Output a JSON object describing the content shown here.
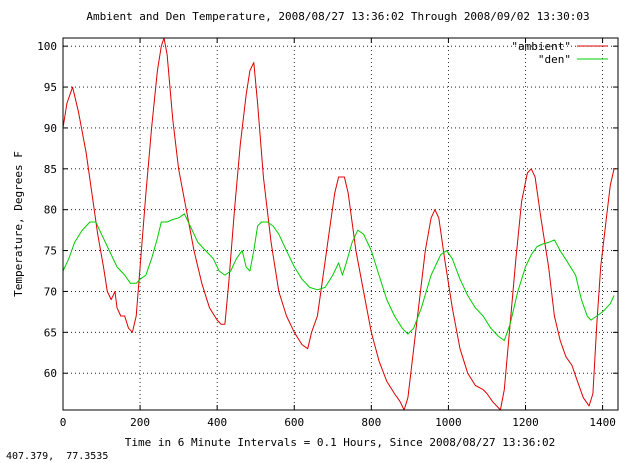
{
  "status_readout": "407.379,  77.3535",
  "chart_data": {
    "type": "line",
    "title": "Ambient and Den Temperature, 2008/08/27 13:36:02 Through 2008/09/02 13:30:03",
    "xlabel": "Time in 6 Minute Intervals = 0.1 Hours, Since 2008/08/27 13:36:02",
    "ylabel": "Temperature, Degrees F",
    "xlim": [
      0,
      1440
    ],
    "ylim": [
      55.5,
      101
    ],
    "x_ticks": [
      0,
      200,
      400,
      600,
      800,
      1000,
      1200,
      1400
    ],
    "y_ticks": [
      60,
      65,
      70,
      75,
      80,
      85,
      90,
      95,
      100
    ],
    "grid": true,
    "legend_position": "top-right",
    "series": [
      {
        "name": "\"ambient\"",
        "color": "#dd0000",
        "points": [
          [
            0,
            90
          ],
          [
            10,
            93
          ],
          [
            25,
            95
          ],
          [
            40,
            92
          ],
          [
            60,
            87
          ],
          [
            75,
            82
          ],
          [
            90,
            77
          ],
          [
            105,
            73
          ],
          [
            115,
            70
          ],
          [
            125,
            69
          ],
          [
            135,
            70
          ],
          [
            140,
            68
          ],
          [
            150,
            67
          ],
          [
            160,
            67
          ],
          [
            170,
            65.5
          ],
          [
            180,
            65
          ],
          [
            190,
            67
          ],
          [
            200,
            73
          ],
          [
            215,
            82
          ],
          [
            230,
            90
          ],
          [
            245,
            97
          ],
          [
            255,
            100
          ],
          [
            262,
            101
          ],
          [
            270,
            99
          ],
          [
            285,
            91
          ],
          [
            300,
            85
          ],
          [
            320,
            80
          ],
          [
            340,
            75
          ],
          [
            360,
            71
          ],
          [
            380,
            68
          ],
          [
            400,
            66.5
          ],
          [
            410,
            66
          ],
          [
            420,
            66
          ],
          [
            430,
            71
          ],
          [
            445,
            80
          ],
          [
            460,
            88
          ],
          [
            475,
            94
          ],
          [
            485,
            97
          ],
          [
            495,
            98
          ],
          [
            505,
            93
          ],
          [
            520,
            84
          ],
          [
            540,
            76
          ],
          [
            560,
            70
          ],
          [
            580,
            67
          ],
          [
            600,
            65
          ],
          [
            620,
            63.5
          ],
          [
            635,
            63
          ],
          [
            645,
            65
          ],
          [
            660,
            67
          ],
          [
            675,
            72
          ],
          [
            690,
            77
          ],
          [
            705,
            82
          ],
          [
            715,
            84
          ],
          [
            730,
            84
          ],
          [
            740,
            82
          ],
          [
            760,
            75
          ],
          [
            780,
            70
          ],
          [
            800,
            65
          ],
          [
            820,
            61.5
          ],
          [
            840,
            59
          ],
          [
            860,
            57.5
          ],
          [
            875,
            56.5
          ],
          [
            885,
            55.5
          ],
          [
            895,
            57
          ],
          [
            910,
            63
          ],
          [
            925,
            69
          ],
          [
            940,
            75
          ],
          [
            955,
            79
          ],
          [
            965,
            80
          ],
          [
            975,
            79
          ],
          [
            990,
            74
          ],
          [
            1010,
            68
          ],
          [
            1030,
            63
          ],
          [
            1050,
            60
          ],
          [
            1070,
            58.5
          ],
          [
            1090,
            58
          ],
          [
            1100,
            57.5
          ],
          [
            1115,
            56.5
          ],
          [
            1125,
            56
          ],
          [
            1135,
            55.5
          ],
          [
            1145,
            58
          ],
          [
            1160,
            66
          ],
          [
            1175,
            74
          ],
          [
            1190,
            81
          ],
          [
            1205,
            84.5
          ],
          [
            1215,
            85
          ],
          [
            1225,
            84
          ],
          [
            1240,
            79
          ],
          [
            1260,
            73
          ],
          [
            1275,
            67
          ],
          [
            1290,
            64
          ],
          [
            1305,
            62
          ],
          [
            1320,
            61
          ],
          [
            1335,
            59
          ],
          [
            1350,
            57
          ],
          [
            1365,
            56
          ],
          [
            1375,
            57.5
          ],
          [
            1385,
            66
          ],
          [
            1395,
            73
          ],
          [
            1410,
            79
          ],
          [
            1420,
            83
          ],
          [
            1430,
            85
          ]
        ]
      },
      {
        "name": "\"den\"",
        "color": "#00cc00",
        "points": [
          [
            0,
            72.5
          ],
          [
            15,
            74
          ],
          [
            30,
            76
          ],
          [
            50,
            77.5
          ],
          [
            70,
            78.5
          ],
          [
            85,
            78.5
          ],
          [
            100,
            77
          ],
          [
            120,
            75
          ],
          [
            140,
            73
          ],
          [
            160,
            72
          ],
          [
            175,
            71
          ],
          [
            190,
            71
          ],
          [
            200,
            71.5
          ],
          [
            215,
            72
          ],
          [
            230,
            74
          ],
          [
            245,
            76.5
          ],
          [
            255,
            78.5
          ],
          [
            270,
            78.5
          ],
          [
            285,
            78.8
          ],
          [
            300,
            79
          ],
          [
            315,
            79.5
          ],
          [
            330,
            78
          ],
          [
            350,
            76
          ],
          [
            370,
            75
          ],
          [
            390,
            74
          ],
          [
            405,
            72.5
          ],
          [
            420,
            72
          ],
          [
            435,
            72.5
          ],
          [
            450,
            74
          ],
          [
            465,
            75
          ],
          [
            475,
            73
          ],
          [
            485,
            72.5
          ],
          [
            495,
            75
          ],
          [
            505,
            78
          ],
          [
            515,
            78.5
          ],
          [
            530,
            78.5
          ],
          [
            545,
            78
          ],
          [
            560,
            77
          ],
          [
            580,
            75
          ],
          [
            600,
            73
          ],
          [
            620,
            71.5
          ],
          [
            640,
            70.5
          ],
          [
            660,
            70.2
          ],
          [
            680,
            70.5
          ],
          [
            700,
            72
          ],
          [
            715,
            73.5
          ],
          [
            725,
            72
          ],
          [
            735,
            73.5
          ],
          [
            750,
            76
          ],
          [
            765,
            77.5
          ],
          [
            780,
            77
          ],
          [
            800,
            75
          ],
          [
            820,
            72
          ],
          [
            840,
            69
          ],
          [
            860,
            67
          ],
          [
            880,
            65.5
          ],
          [
            895,
            64.8
          ],
          [
            910,
            65.5
          ],
          [
            930,
            68
          ],
          [
            955,
            72
          ],
          [
            980,
            74.5
          ],
          [
            995,
            75
          ],
          [
            1010,
            74
          ],
          [
            1030,
            71.5
          ],
          [
            1050,
            69.5
          ],
          [
            1070,
            68
          ],
          [
            1090,
            67
          ],
          [
            1110,
            65.5
          ],
          [
            1130,
            64.5
          ],
          [
            1145,
            64
          ],
          [
            1160,
            66
          ],
          [
            1180,
            70
          ],
          [
            1200,
            73
          ],
          [
            1215,
            74.5
          ],
          [
            1230,
            75.5
          ],
          [
            1245,
            75.8
          ],
          [
            1260,
            76
          ],
          [
            1275,
            76.3
          ],
          [
            1290,
            75
          ],
          [
            1310,
            73.5
          ],
          [
            1330,
            72
          ],
          [
            1345,
            69
          ],
          [
            1360,
            67
          ],
          [
            1370,
            66.5
          ],
          [
            1385,
            67
          ],
          [
            1400,
            67.5
          ],
          [
            1420,
            68.5
          ],
          [
            1430,
            69.5
          ]
        ]
      }
    ]
  }
}
